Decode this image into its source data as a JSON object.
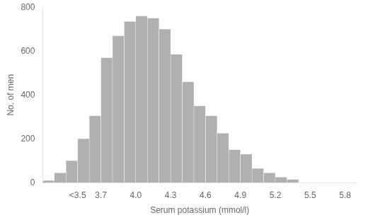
{
  "chart_data": {
    "type": "histogram",
    "xlabel": "Serum potassium (mmol/l)",
    "ylabel": "No. of men",
    "bins": [
      3.2,
      3.3,
      3.4,
      3.5,
      3.6,
      3.7,
      3.8,
      3.9,
      4.0,
      4.1,
      4.2,
      4.3,
      4.4,
      4.5,
      4.6,
      4.7,
      4.8,
      4.9,
      5.0,
      5.1,
      5.2,
      5.3,
      5.4,
      5.5,
      5.6,
      5.7,
      5.8,
      5.9
    ],
    "values": [
      10,
      45,
      100,
      200,
      305,
      570,
      670,
      735,
      760,
      750,
      700,
      585,
      460,
      350,
      305,
      225,
      150,
      130,
      65,
      45,
      25,
      15,
      0,
      0,
      0,
      0,
      0
    ],
    "color": "#b0b0b0",
    "xlim": [
      3.2,
      5.9
    ],
    "xticks": [
      {
        "value": 3.5,
        "label": "<3.5"
      },
      3.7,
      {
        "value": 4.0,
        "label": "4.0"
      },
      4.3,
      4.6,
      4.9,
      5.2,
      5.5,
      5.8
    ],
    "ylim": [
      0,
      800
    ],
    "yticks": [
      0,
      200,
      400,
      600,
      800
    ],
    "grid": false
  }
}
